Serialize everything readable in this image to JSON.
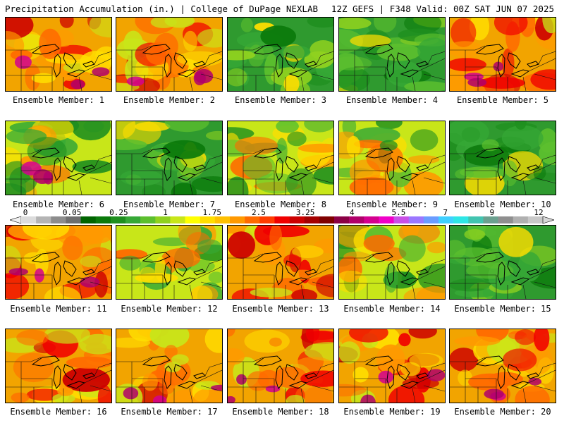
{
  "header": {
    "left_title": "Precipitation Accumulation (in.) | College of DuPage NEXLAB",
    "right_title": "12Z GEFS | F348 Valid: 00Z SAT JUN 07 2025"
  },
  "colorbar": {
    "labels": [
      "0",
      "0.05",
      "0.25",
      "1",
      "1.75",
      "2.5",
      "3.25",
      "4",
      "5.5",
      "7",
      "9",
      "12"
    ],
    "colors": [
      "#dcdcdc",
      "#b4b4b4",
      "#8c8c8c",
      "#6e6e6e",
      "#006400",
      "#0b7a0b",
      "#1f8f1f",
      "#36a836",
      "#5cbf2e",
      "#8fd11f",
      "#c8e619",
      "#ffff00",
      "#ffde00",
      "#ffc000",
      "#ff9900",
      "#ff6a00",
      "#ff3c00",
      "#f00000",
      "#cc0000",
      "#a50000",
      "#800000",
      "#8b0045",
      "#b0006b",
      "#d4008f",
      "#f000c8",
      "#c94fe6",
      "#9b77ff",
      "#6a9cff",
      "#3fd0ff",
      "#2ee6e6",
      "#42c4b0",
      "#6ba08f",
      "#8f8f8f",
      "#b0b0b0",
      "#c8c8c8"
    ]
  },
  "panels": [
    {
      "label": "Ensemble Member: 1",
      "tone": "wet",
      "pink": true
    },
    {
      "label": "Ensemble Member: 2",
      "tone": "wet",
      "pink": true
    },
    {
      "label": "Ensemble Member: 3",
      "tone": "dry",
      "pink": false
    },
    {
      "label": "Ensemble Member: 4",
      "tone": "dry",
      "pink": false
    },
    {
      "label": "Ensemble Member: 5",
      "tone": "wet",
      "pink": true
    },
    {
      "label": "Ensemble Member: 6",
      "tone": "mixed",
      "pink": true
    },
    {
      "label": "Ensemble Member: 7",
      "tone": "dry",
      "pink": false
    },
    {
      "label": "Ensemble Member: 8",
      "tone": "mixed",
      "pink": false
    },
    {
      "label": "Ensemble Member: 9",
      "tone": "mixed",
      "pink": false
    },
    {
      "label": "Ensemble Member: 10",
      "tone": "dry",
      "pink": false
    },
    {
      "label": "Ensemble Member: 11",
      "tone": "wet",
      "pink": true
    },
    {
      "label": "Ensemble Member: 12",
      "tone": "mixed",
      "pink": false
    },
    {
      "label": "Ensemble Member: 13",
      "tone": "wet",
      "pink": false
    },
    {
      "label": "Ensemble Member: 14",
      "tone": "mixed",
      "pink": false
    },
    {
      "label": "Ensemble Member: 15",
      "tone": "dry",
      "pink": false
    },
    {
      "label": "Ensemble Member: 16",
      "tone": "wet",
      "pink": false
    },
    {
      "label": "Ensemble Member: 17",
      "tone": "wet",
      "pink": true
    },
    {
      "label": "Ensemble Member: 18",
      "tone": "wet",
      "pink": true
    },
    {
      "label": "Ensemble Member: 19",
      "tone": "wet",
      "pink": true
    },
    {
      "label": "Ensemble Member: 20",
      "tone": "wet",
      "pink": true
    }
  ]
}
